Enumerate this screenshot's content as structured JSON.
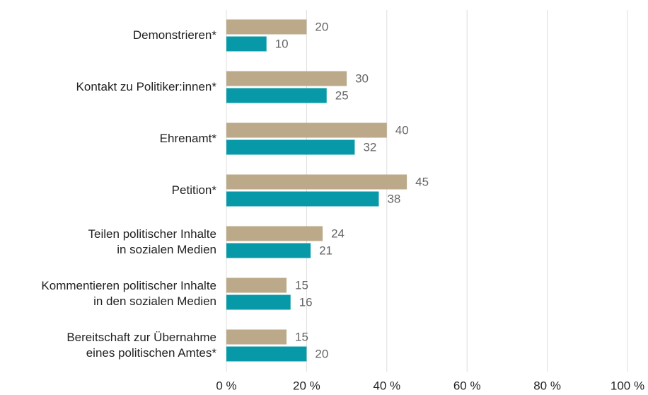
{
  "chart_data": {
    "type": "barh",
    "categories": [
      "Demonstrieren*",
      "Kontakt zu Politiker:innen*",
      "Ehrenamt*",
      "Petition*",
      "Teilen politischer Inhalte\nin sozialen Medien",
      "Kommentieren politischer Inhalte\nin den sozialen Medien",
      "Bereitschaft zur Übernahme\neines politischen Amtes*"
    ],
    "series": [
      {
        "color": "#bba98a",
        "values": [
          20,
          30,
          40,
          45,
          24,
          15,
          15
        ]
      },
      {
        "color": "#0899a8",
        "values": [
          10,
          25,
          32,
          38,
          21,
          16,
          20
        ]
      }
    ],
    "xlim": [
      0,
      100
    ],
    "xticks": [
      {
        "value": 0,
        "label": "0 %"
      },
      {
        "value": 20,
        "label": "20 %"
      },
      {
        "value": 40,
        "label": "40 %"
      },
      {
        "value": 60,
        "label": "60 %"
      },
      {
        "value": 80,
        "label": "80 %"
      },
      {
        "value": 100,
        "label": "100 %"
      }
    ],
    "grid": true
  }
}
